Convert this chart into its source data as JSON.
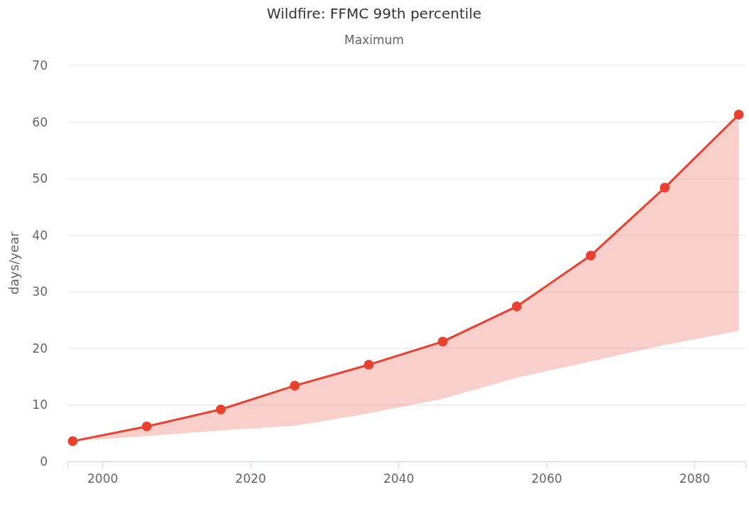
{
  "chart_data": {
    "type": "line",
    "title": "Wildfire: FFMC 99th percentile",
    "subtitle": "Maximum",
    "ylabel": "days/year",
    "x": [
      1996,
      2006,
      2016,
      2026,
      2036,
      2046,
      2056,
      2066,
      2076,
      2086
    ],
    "series": [
      {
        "color": "#e8412f",
        "values": [
          3.6,
          6.2,
          9.2,
          13.4,
          17.1,
          21.2,
          27.4,
          36.4,
          48.4,
          61.3
        ],
        "lower": [
          3.6,
          4.5,
          5.5,
          6.3,
          8.5,
          11.1,
          14.8,
          17.7,
          20.6,
          23.1
        ],
        "upper": [
          3.6,
          6.2,
          9.2,
          13.4,
          17.1,
          21.2,
          27.4,
          36.4,
          48.4,
          61.3
        ]
      }
    ],
    "xlim": [
      1995.3,
      2086.9
    ],
    "xticks": [
      2000,
      2020,
      2040,
      2060,
      2080
    ],
    "ylim": [
      0,
      70
    ],
    "yticks": [
      0,
      10,
      20,
      30,
      40,
      50,
      60,
      70
    ],
    "grid": "y",
    "marker": "circle",
    "line_style": "solid"
  }
}
